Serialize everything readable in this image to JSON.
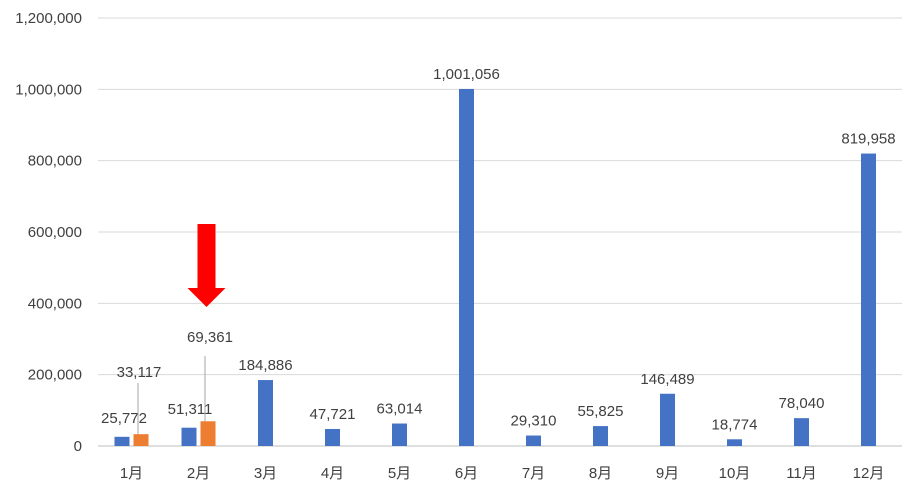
{
  "chart_data": {
    "type": "bar",
    "title": "",
    "xlabel": "",
    "ylabel": "",
    "ylim": [
      0,
      1200000
    ],
    "y_ticks": [
      0,
      200000,
      400000,
      600000,
      800000,
      1000000,
      1200000
    ],
    "y_tick_labels": [
      "0",
      "200,000",
      "400,000",
      "600,000",
      "800,000",
      "1,000,000",
      "1,200,000"
    ],
    "grid": true,
    "legend": "none",
    "categories": [
      "1月",
      "2月",
      "3月",
      "4月",
      "5月",
      "6月",
      "7月",
      "8月",
      "9月",
      "10月",
      "11月",
      "12月"
    ],
    "series": [
      {
        "color": "#4472c4",
        "values": [
          25772,
          51311,
          184886,
          47721,
          63014,
          1001056,
          29310,
          55825,
          146489,
          18774,
          78040,
          819958
        ],
        "labels": [
          "25,772",
          "51,311",
          "184,886",
          "47,721",
          "63,014",
          "1,001,056",
          "29,310",
          "55,825",
          "146,489",
          "18,774",
          "78,040",
          "819,958"
        ]
      },
      {
        "color": "#ed7d31",
        "values": [
          33117,
          69361,
          null,
          null,
          null,
          null,
          null,
          null,
          null,
          null,
          null,
          null
        ],
        "labels": [
          "33,117",
          "69,361",
          "",
          "",
          "",
          "",
          "",
          "",
          "",
          "",
          "",
          ""
        ]
      }
    ],
    "annotations": [
      {
        "type": "arrow",
        "color": "#ff0000",
        "points_to": "2月",
        "direction": "down"
      }
    ]
  }
}
